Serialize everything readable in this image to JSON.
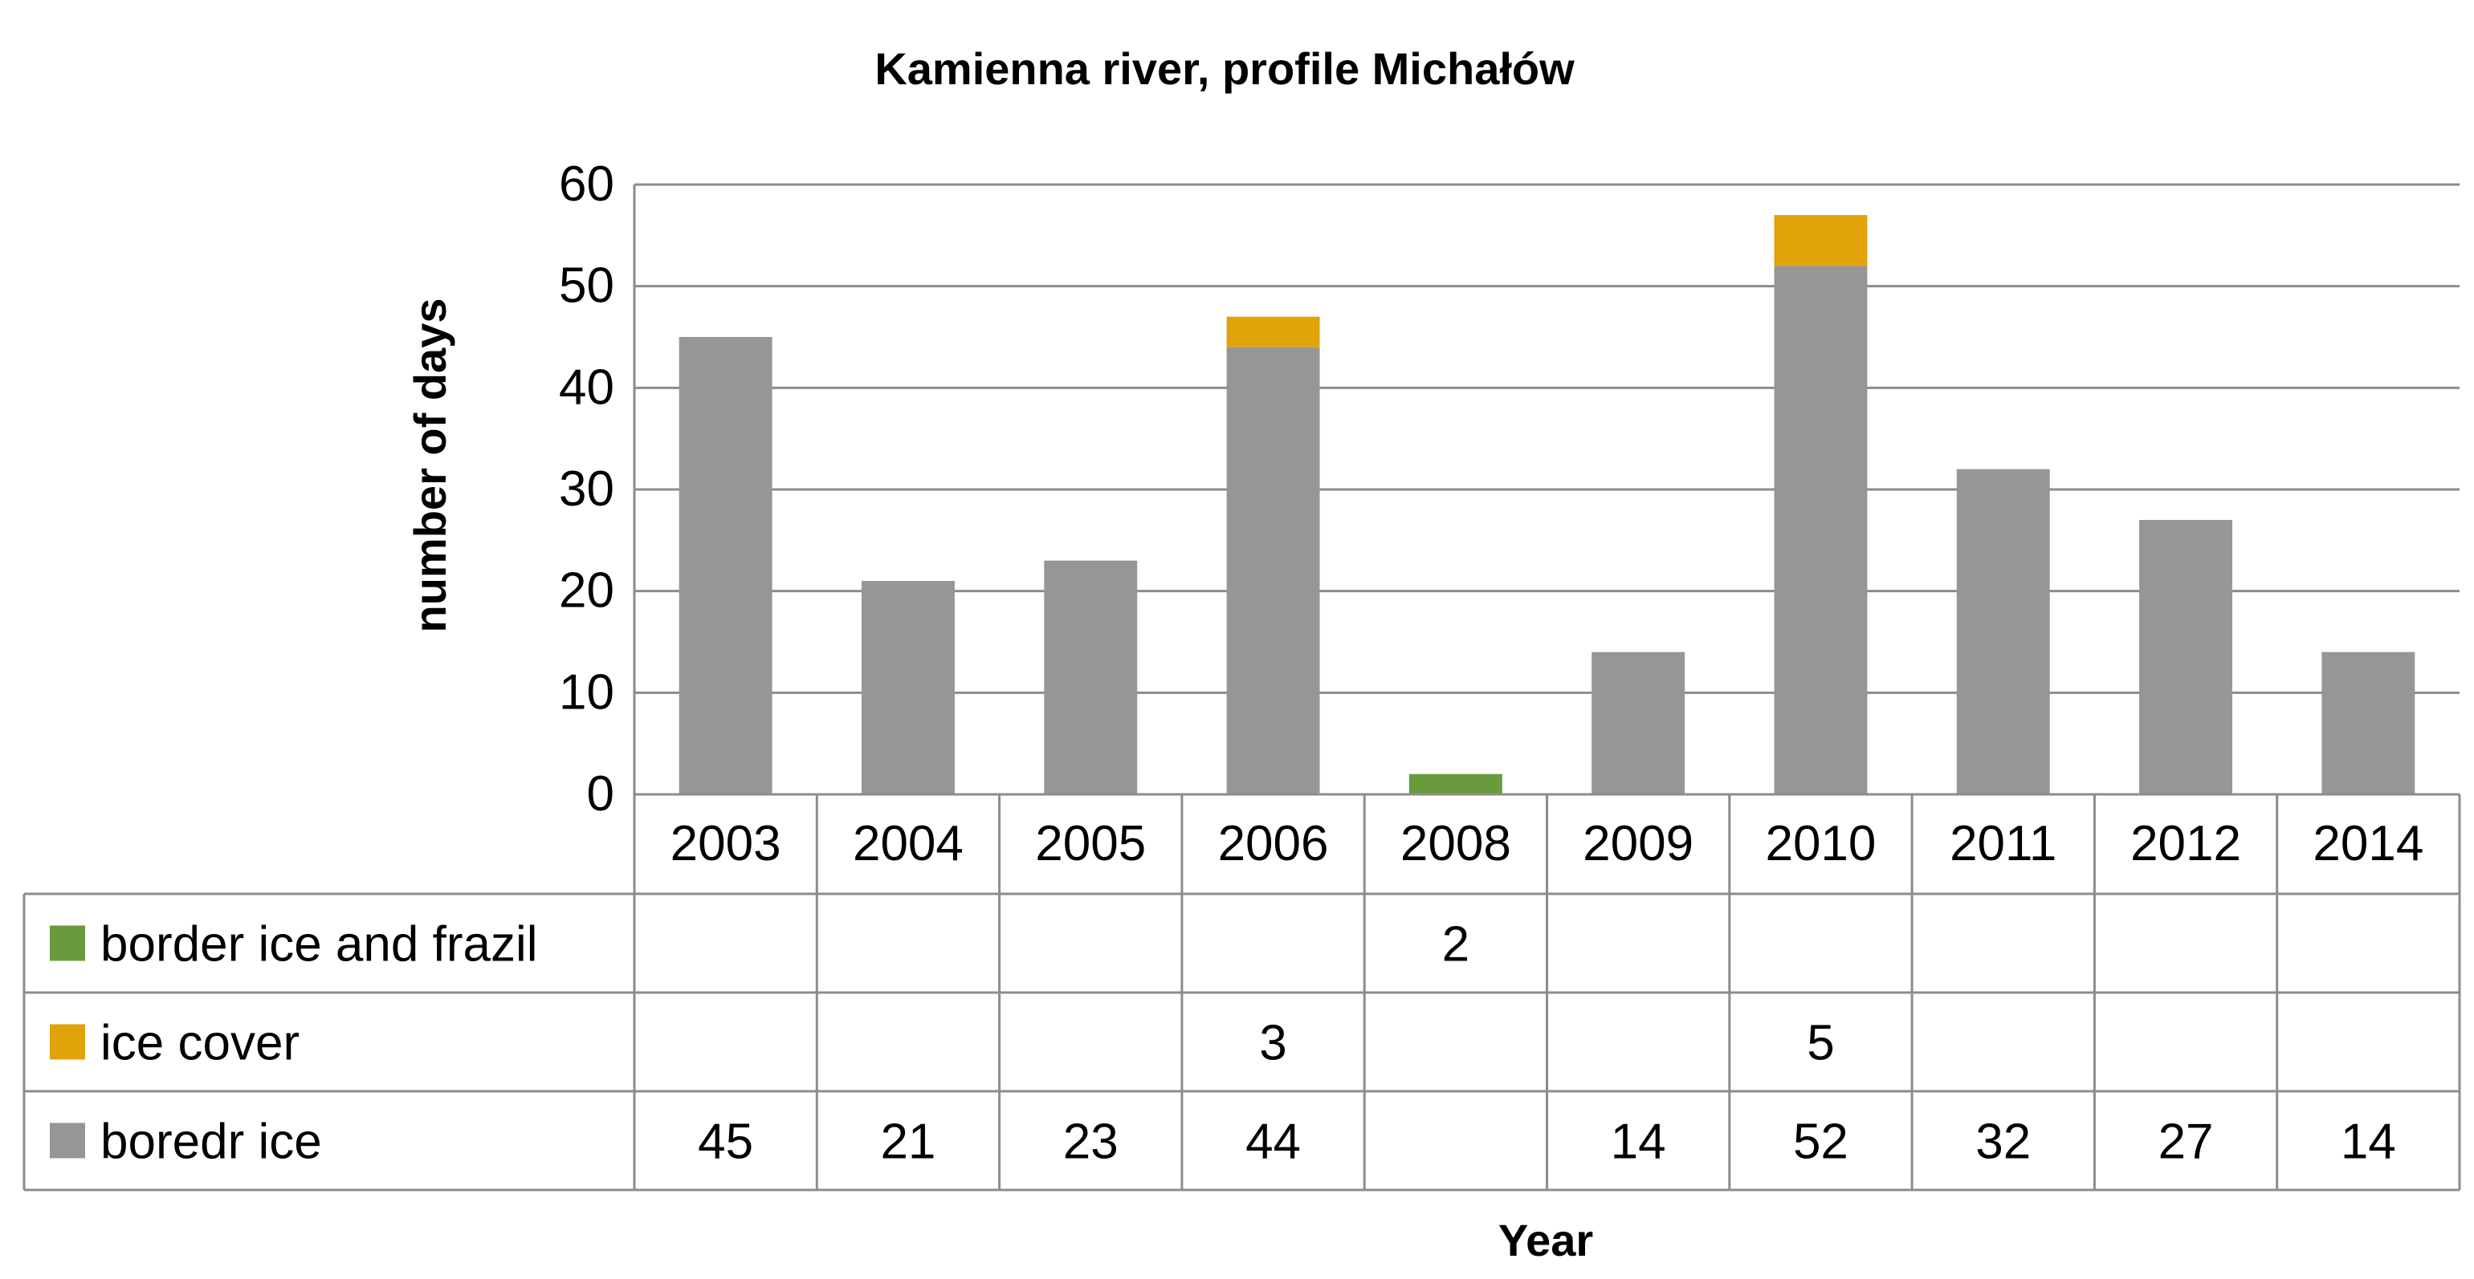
{
  "chart_data": {
    "type": "bar",
    "stacked": true,
    "title": "Kamienna river, profile Michałów",
    "xlabel": "Year",
    "ylabel": "number of days",
    "ylim": [
      0,
      60
    ],
    "yticks": [
      "0",
      "10",
      "20",
      "30",
      "40",
      "50",
      "60"
    ],
    "grid": true,
    "legend": "data-table",
    "categories": [
      "2003",
      "2004",
      "2005",
      "2006",
      "2008",
      "2009",
      "2010",
      "2011",
      "2012",
      "2014"
    ],
    "series": [
      {
        "name": "border ice and frazil",
        "color": "#6a9a3e",
        "values": [
          null,
          null,
          null,
          null,
          2,
          null,
          null,
          null,
          null,
          null
        ]
      },
      {
        "name": "ice cover",
        "color": "#e0a30a",
        "values": [
          null,
          null,
          null,
          3,
          null,
          null,
          5,
          null,
          null,
          null
        ]
      },
      {
        "name": "boredr ice",
        "color": "#969696",
        "values": [
          45,
          21,
          23,
          44,
          null,
          14,
          52,
          32,
          27,
          14
        ]
      }
    ]
  }
}
